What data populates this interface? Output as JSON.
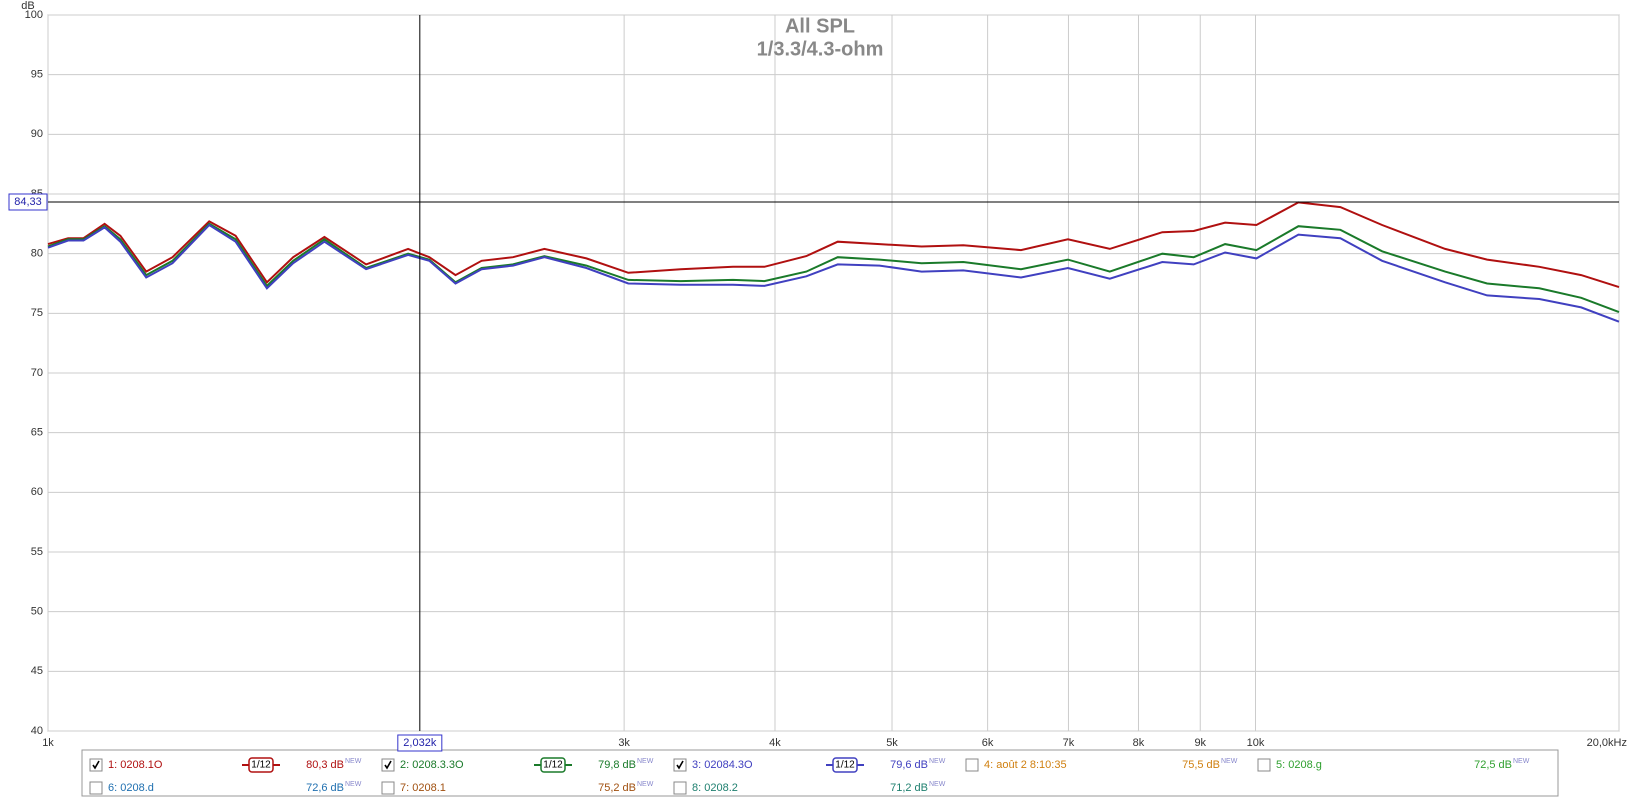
{
  "chart_data": {
    "type": "line",
    "title": "All SPL",
    "subtitle": "1/3.3/4.3-ohm",
    "y_label": "dB",
    "log_x": true,
    "grid": true,
    "xlim": [
      1000,
      20000
    ],
    "ylim": [
      40,
      100
    ],
    "xticks": [
      {
        "value": 1000,
        "label": "1k"
      },
      {
        "value": 3000,
        "label": "3k"
      },
      {
        "value": 4000,
        "label": "4k"
      },
      {
        "value": 5000,
        "label": "5k"
      },
      {
        "value": 6000,
        "label": "6k"
      },
      {
        "value": 7000,
        "label": "7k"
      },
      {
        "value": 8000,
        "label": "8k"
      },
      {
        "value": 9000,
        "label": "9k"
      },
      {
        "value": 10000,
        "label": "10k"
      },
      {
        "value": 20000,
        "label": "20,0kHz"
      }
    ],
    "yticks": [
      40,
      45,
      50,
      55,
      60,
      65,
      70,
      75,
      80,
      85,
      90,
      95,
      100
    ],
    "cursor": {
      "x": {
        "value": 2032,
        "label": "2,032k"
      },
      "y": {
        "value": 84.33,
        "label": "84,33"
      }
    },
    "x": [
      1000,
      1039,
      1070,
      1114,
      1148,
      1206,
      1268,
      1360,
      1430,
      1518,
      1596,
      1694,
      1834,
      1987,
      2069,
      2175,
      2286,
      2427,
      2577,
      2792,
      3024,
      3342,
      3692,
      3920,
      4246,
      4508,
      4883,
      5290,
      5728,
      6394,
      6993,
      7574,
      8372,
      8888,
      9436,
      10018,
      10852,
      11757,
      12731,
      14355,
      15551,
      17180,
      18610,
      20000
    ],
    "series": [
      {
        "name": "1: 0208.1O",
        "color": "#b01010",
        "checked": true,
        "smoothing": "1/12",
        "level": {
          "value": 80.3,
          "label": "80,3 dB"
        },
        "tag": "NEW",
        "values": [
          80.8,
          81.3,
          81.3,
          82.5,
          81.5,
          78.5,
          79.7,
          82.7,
          81.5,
          77.6,
          79.7,
          81.4,
          79.1,
          80.4,
          79.7,
          78.2,
          79.4,
          79.7,
          80.4,
          79.6,
          78.4,
          78.7,
          78.9,
          78.9,
          79.8,
          81.0,
          80.8,
          80.6,
          80.7,
          80.3,
          81.2,
          80.4,
          81.8,
          81.9,
          82.6,
          82.4,
          84.3,
          83.9,
          82.4,
          80.4,
          79.5,
          78.9,
          78.2,
          77.2
        ]
      },
      {
        "name": "2: 0208.3.3O",
        "color": "#1a7a2a",
        "checked": true,
        "smoothing": "1/12",
        "level": {
          "value": 79.8,
          "label": "79,8 dB"
        },
        "tag": "NEW",
        "values": [
          80.6,
          81.2,
          81.2,
          82.3,
          81.2,
          78.2,
          79.4,
          82.5,
          81.2,
          77.3,
          79.4,
          81.2,
          78.8,
          80.0,
          79.5,
          77.6,
          78.8,
          79.1,
          79.8,
          79.0,
          77.8,
          77.7,
          77.8,
          77.7,
          78.5,
          79.7,
          79.5,
          79.2,
          79.3,
          78.7,
          79.5,
          78.5,
          80.0,
          79.7,
          80.8,
          80.3,
          82.3,
          82.0,
          80.2,
          78.5,
          77.5,
          77.1,
          76.3,
          75.1
        ]
      },
      {
        "name": "3: 02084.3O",
        "color": "#4040c0",
        "checked": true,
        "smoothing": "1/12",
        "level": {
          "value": 79.6,
          "label": "79,6 dB"
        },
        "tag": "NEW",
        "values": [
          80.5,
          81.1,
          81.1,
          82.2,
          81.0,
          78.0,
          79.2,
          82.4,
          81.0,
          77.1,
          79.2,
          81.0,
          78.7,
          79.9,
          79.4,
          77.5,
          78.7,
          79.0,
          79.7,
          78.8,
          77.5,
          77.4,
          77.4,
          77.3,
          78.1,
          79.1,
          79.0,
          78.5,
          78.6,
          78.0,
          78.8,
          77.9,
          79.3,
          79.1,
          80.1,
          79.6,
          81.6,
          81.3,
          79.4,
          77.6,
          76.5,
          76.2,
          75.5,
          74.3
        ]
      }
    ],
    "other_measurements": [
      {
        "name": "4: août 2 8:10:35",
        "color": "#d08010",
        "checked": false,
        "level": {
          "value": 75.5,
          "label": "75,5 dB"
        },
        "tag": "NEW"
      },
      {
        "name": "5: 0208.g",
        "color": "#30a030",
        "checked": false,
        "level": {
          "value": 72.5,
          "label": "72,5 dB"
        },
        "tag": "NEW"
      },
      {
        "name": "6: 0208.d",
        "color": "#2070b0",
        "checked": false,
        "level": {
          "value": 72.6,
          "label": "72,6 dB"
        },
        "tag": "NEW"
      },
      {
        "name": "7: 0208.1",
        "color": "#a05010",
        "checked": false,
        "level": {
          "value": 75.2,
          "label": "75,2 dB"
        },
        "tag": "NEW"
      },
      {
        "name": "8: 0208.2",
        "color": "#208070",
        "checked": false,
        "level": {
          "value": 71.2,
          "label": "71,2 dB"
        },
        "tag": "NEW"
      }
    ]
  }
}
